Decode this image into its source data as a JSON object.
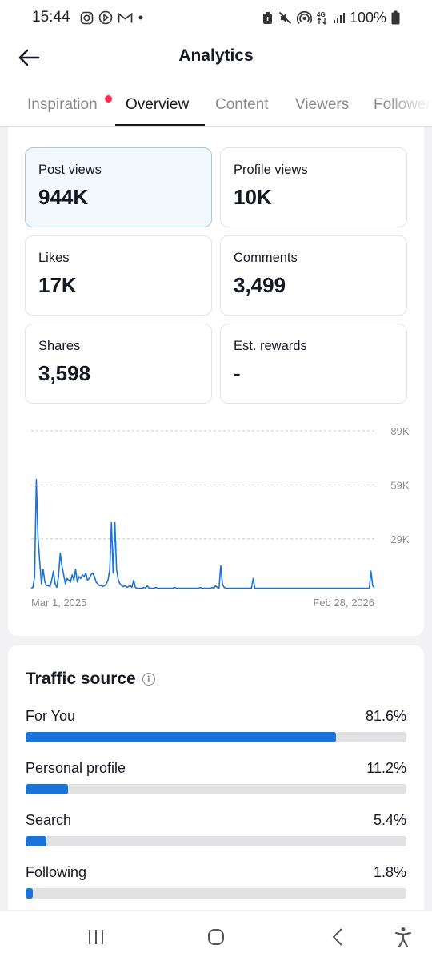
{
  "status_bar": {
    "time": "15:44",
    "battery": "100%",
    "left_icons": [
      "instagram-icon",
      "play-icon",
      "gmail-icon",
      "dot-icon"
    ],
    "right_icons": [
      "alarm-icon",
      "mute-icon",
      "hotspot-icon",
      "data-4g-icon",
      "signal-icon",
      "battery-icon"
    ]
  },
  "header": {
    "title": "Analytics",
    "back_icon": "arrow-left-icon"
  },
  "tabs": [
    {
      "label": "Inspiration",
      "has_notification": true
    },
    {
      "label": "Overview",
      "active": true
    },
    {
      "label": "Content"
    },
    {
      "label": "Viewers"
    },
    {
      "label": "Followers"
    }
  ],
  "metrics": [
    {
      "label": "Post views",
      "value": "944K",
      "selected": true
    },
    {
      "label": "Profile views",
      "value": "10K"
    },
    {
      "label": "Likes",
      "value": "17K"
    },
    {
      "label": "Comments",
      "value": "3,499"
    },
    {
      "label": "Shares",
      "value": "3,598"
    },
    {
      "label": "Est. rewards",
      "value": "-"
    }
  ],
  "chart_data": {
    "type": "line",
    "title": "",
    "xlabel": "",
    "ylabel": "",
    "x_start_label": "Mar 1, 2025",
    "x_end_label": "Feb 28, 2026",
    "yticks": [
      "89K",
      "59K",
      "29K"
    ],
    "ylim": [
      0,
      89000
    ],
    "grid": true,
    "color": "#1a73d9",
    "series": [
      {
        "values": [
          1500,
          2000,
          8000,
          62000,
          30000,
          16000,
          4000,
          12000,
          5000,
          3000,
          3000,
          2500,
          6000,
          11000,
          4000,
          2000,
          8000,
          21000,
          14000,
          9000,
          4000,
          7000,
          6000,
          5000,
          9000,
          6000,
          12000,
          5000,
          8000,
          7000,
          9000,
          8000,
          10000,
          6000,
          7000,
          9000,
          10000,
          8000,
          5000,
          4000,
          3000,
          3000,
          2500,
          3000,
          4000,
          6000,
          12000,
          38000,
          10000,
          38000,
          12000,
          6000,
          4000,
          3000,
          2500,
          3000,
          2000,
          2500,
          3000,
          2000,
          6000,
          2000,
          1500,
          1500,
          1500,
          1500,
          2000,
          1500,
          3000,
          1500,
          1500,
          1500,
          1500,
          2000,
          1500,
          1500,
          1500,
          1500,
          1500,
          1500,
          1500,
          1500,
          1500,
          1500,
          2000,
          1500,
          1500,
          1500,
          1500,
          1500,
          1500,
          1500,
          1500,
          1500,
          1500,
          1500,
          1500,
          1500,
          1500,
          2000,
          1500,
          1500,
          1500,
          1500,
          1500,
          1500,
          2000,
          1500,
          3000,
          2000,
          1500,
          14000,
          4000,
          2000,
          1500,
          1500,
          1500,
          1500,
          1500,
          1500,
          1500,
          1500,
          1500,
          1500,
          1500,
          1500,
          1500,
          1500,
          1500,
          1500,
          7000,
          1500,
          1500,
          1500,
          1500,
          1500,
          1500,
          1500,
          1500,
          1500,
          1500,
          1500,
          1500,
          1500,
          1500,
          1500,
          1500,
          1500,
          1500,
          1500,
          1500,
          1500,
          1500,
          1500,
          1500,
          1500,
          1500,
          1500,
          1500,
          1500,
          1500,
          1500,
          1500,
          1500,
          1500,
          1500,
          1500,
          1500,
          1500,
          1500,
          1500,
          1500,
          1500,
          1500,
          1500,
          1500,
          1500,
          1500,
          1500,
          1500,
          1500,
          1500,
          1500,
          1500,
          1500,
          1500,
          1500,
          1500,
          1500,
          1500,
          1500,
          1500,
          1500,
          1500,
          1500,
          1500,
          1500,
          1500,
          1500,
          11000,
          3000,
          1500
        ]
      }
    ]
  },
  "traffic": {
    "title": "Traffic source",
    "info_icon": "info-icon",
    "sources": [
      {
        "label": "For You",
        "percent": "81.6%",
        "fraction": 0.816
      },
      {
        "label": "Personal profile",
        "percent": "11.2%",
        "fraction": 0.112
      },
      {
        "label": "Search",
        "percent": "5.4%",
        "fraction": 0.054
      },
      {
        "label": "Following",
        "percent": "1.8%",
        "fraction": 0.018
      }
    ]
  },
  "nav_bar": {
    "icons": [
      "recent-apps-icon",
      "home-icon",
      "back-nav-icon",
      "accessibility-icon"
    ]
  }
}
